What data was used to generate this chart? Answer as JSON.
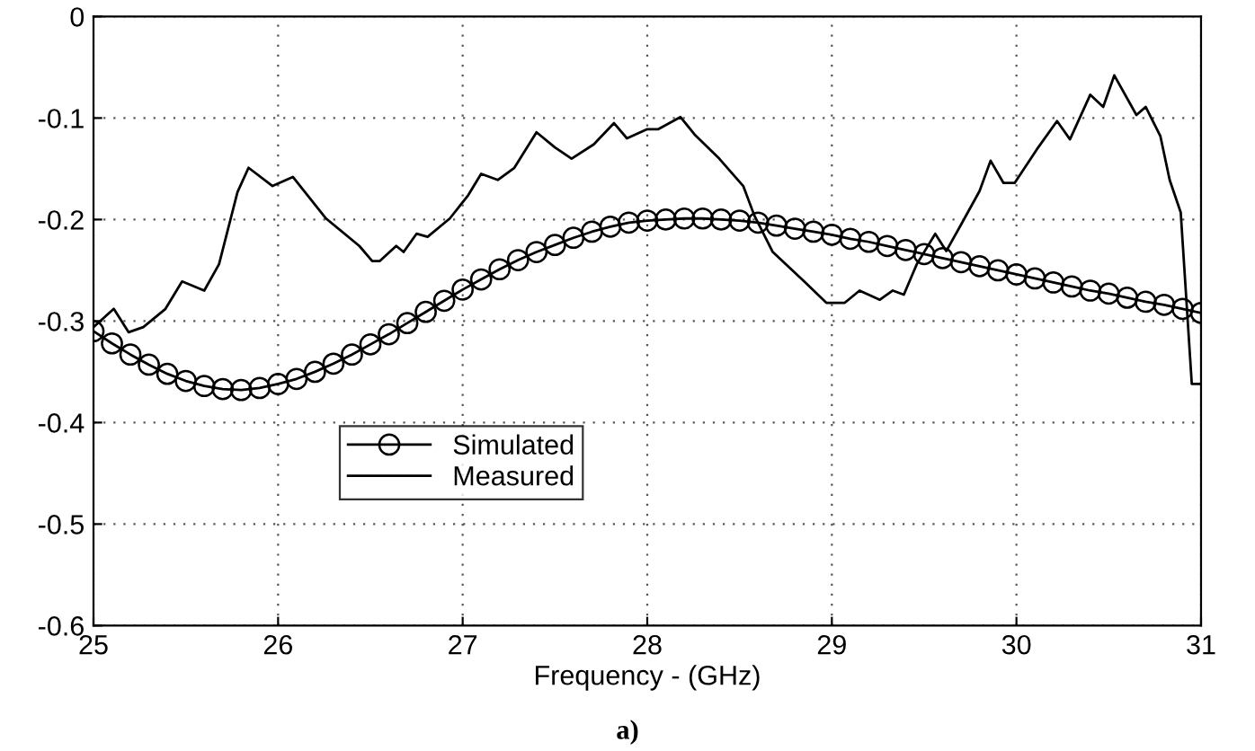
{
  "chart_data": {
    "type": "line",
    "xlabel": "Frequency - (GHz)",
    "annotations": [
      "a)"
    ],
    "xlim": [
      25,
      31
    ],
    "xticks": [
      25,
      26,
      27,
      28,
      29,
      30,
      31
    ],
    "ylim": [
      -0.6,
      0
    ],
    "yticks": [
      -0.6,
      -0.5,
      -0.4,
      -0.3,
      -0.2,
      -0.1,
      0
    ],
    "grid": true,
    "legend": "center left",
    "series": [
      {
        "name": "Simulated",
        "color": "#000000",
        "marker": "circle",
        "line_style": "solid",
        "x": [
          25.0,
          25.1,
          25.2,
          25.3,
          25.4,
          25.5,
          25.6,
          25.7,
          25.8,
          25.9,
          26.0,
          26.1,
          26.2,
          26.3,
          26.4,
          26.5,
          26.6,
          26.7,
          26.8,
          26.9,
          27.0,
          27.1,
          27.2,
          27.3,
          27.4,
          27.5,
          27.6,
          27.7,
          27.8,
          27.9,
          28.0,
          28.1,
          28.2,
          28.3,
          28.4,
          28.5,
          28.6,
          28.7,
          28.8,
          28.9,
          29.0,
          29.1,
          29.2,
          29.3,
          29.4,
          29.5,
          29.6,
          29.7,
          29.8,
          29.9,
          30.0,
          30.1,
          30.2,
          30.3,
          30.4,
          30.5,
          30.6,
          30.7,
          30.8,
          30.9,
          31.0
        ],
        "values": [
          -0.31,
          -0.322,
          -0.333,
          -0.343,
          -0.352,
          -0.359,
          -0.364,
          -0.367,
          -0.368,
          -0.366,
          -0.362,
          -0.357,
          -0.35,
          -0.342,
          -0.333,
          -0.323,
          -0.313,
          -0.302,
          -0.291,
          -0.28,
          -0.269,
          -0.259,
          -0.249,
          -0.24,
          -0.232,
          -0.225,
          -0.218,
          -0.212,
          -0.207,
          -0.203,
          -0.201,
          -0.2,
          -0.199,
          -0.199,
          -0.2,
          -0.201,
          -0.203,
          -0.206,
          -0.209,
          -0.212,
          -0.215,
          -0.219,
          -0.222,
          -0.226,
          -0.23,
          -0.234,
          -0.238,
          -0.242,
          -0.246,
          -0.25,
          -0.254,
          -0.258,
          -0.262,
          -0.266,
          -0.27,
          -0.273,
          -0.277,
          -0.281,
          -0.284,
          -0.288,
          -0.292
        ]
      },
      {
        "name": "Measured",
        "color": "#000000",
        "marker": "none",
        "line_style": "solid",
        "x": [
          25.0,
          25.11,
          25.19,
          25.27,
          25.39,
          25.48,
          25.6,
          25.68,
          25.78,
          25.84,
          25.97,
          26.08,
          26.26,
          26.44,
          26.51,
          26.55,
          26.64,
          26.68,
          26.75,
          26.81,
          26.93,
          27.03,
          27.1,
          27.19,
          27.28,
          27.4,
          27.5,
          27.59,
          27.71,
          27.82,
          27.89,
          28.0,
          28.06,
          28.18,
          28.26,
          28.39,
          28.52,
          28.58,
          28.68,
          28.85,
          28.97,
          29.07,
          29.15,
          29.26,
          29.33,
          29.39,
          29.46,
          29.56,
          29.62,
          29.7,
          29.8,
          29.86,
          29.93,
          29.99,
          30.11,
          30.22,
          30.29,
          30.4,
          30.47,
          30.53,
          30.65,
          30.7,
          30.78,
          30.83,
          30.89,
          30.95,
          31.0
        ],
        "values": [
          -0.306,
          -0.288,
          -0.311,
          -0.306,
          -0.288,
          -0.261,
          -0.27,
          -0.244,
          -0.173,
          -0.149,
          -0.167,
          -0.158,
          -0.199,
          -0.226,
          -0.241,
          -0.241,
          -0.226,
          -0.232,
          -0.214,
          -0.217,
          -0.199,
          -0.176,
          -0.155,
          -0.161,
          -0.149,
          -0.114,
          -0.129,
          -0.14,
          -0.126,
          -0.105,
          -0.12,
          -0.111,
          -0.111,
          -0.099,
          -0.117,
          -0.14,
          -0.167,
          -0.196,
          -0.232,
          -0.261,
          -0.282,
          -0.282,
          -0.27,
          -0.279,
          -0.27,
          -0.274,
          -0.244,
          -0.214,
          -0.231,
          -0.205,
          -0.172,
          -0.142,
          -0.164,
          -0.164,
          -0.131,
          -0.103,
          -0.121,
          -0.077,
          -0.089,
          -0.058,
          -0.097,
          -0.089,
          -0.118,
          -0.161,
          -0.193,
          -0.362,
          -0.362
        ]
      }
    ]
  }
}
